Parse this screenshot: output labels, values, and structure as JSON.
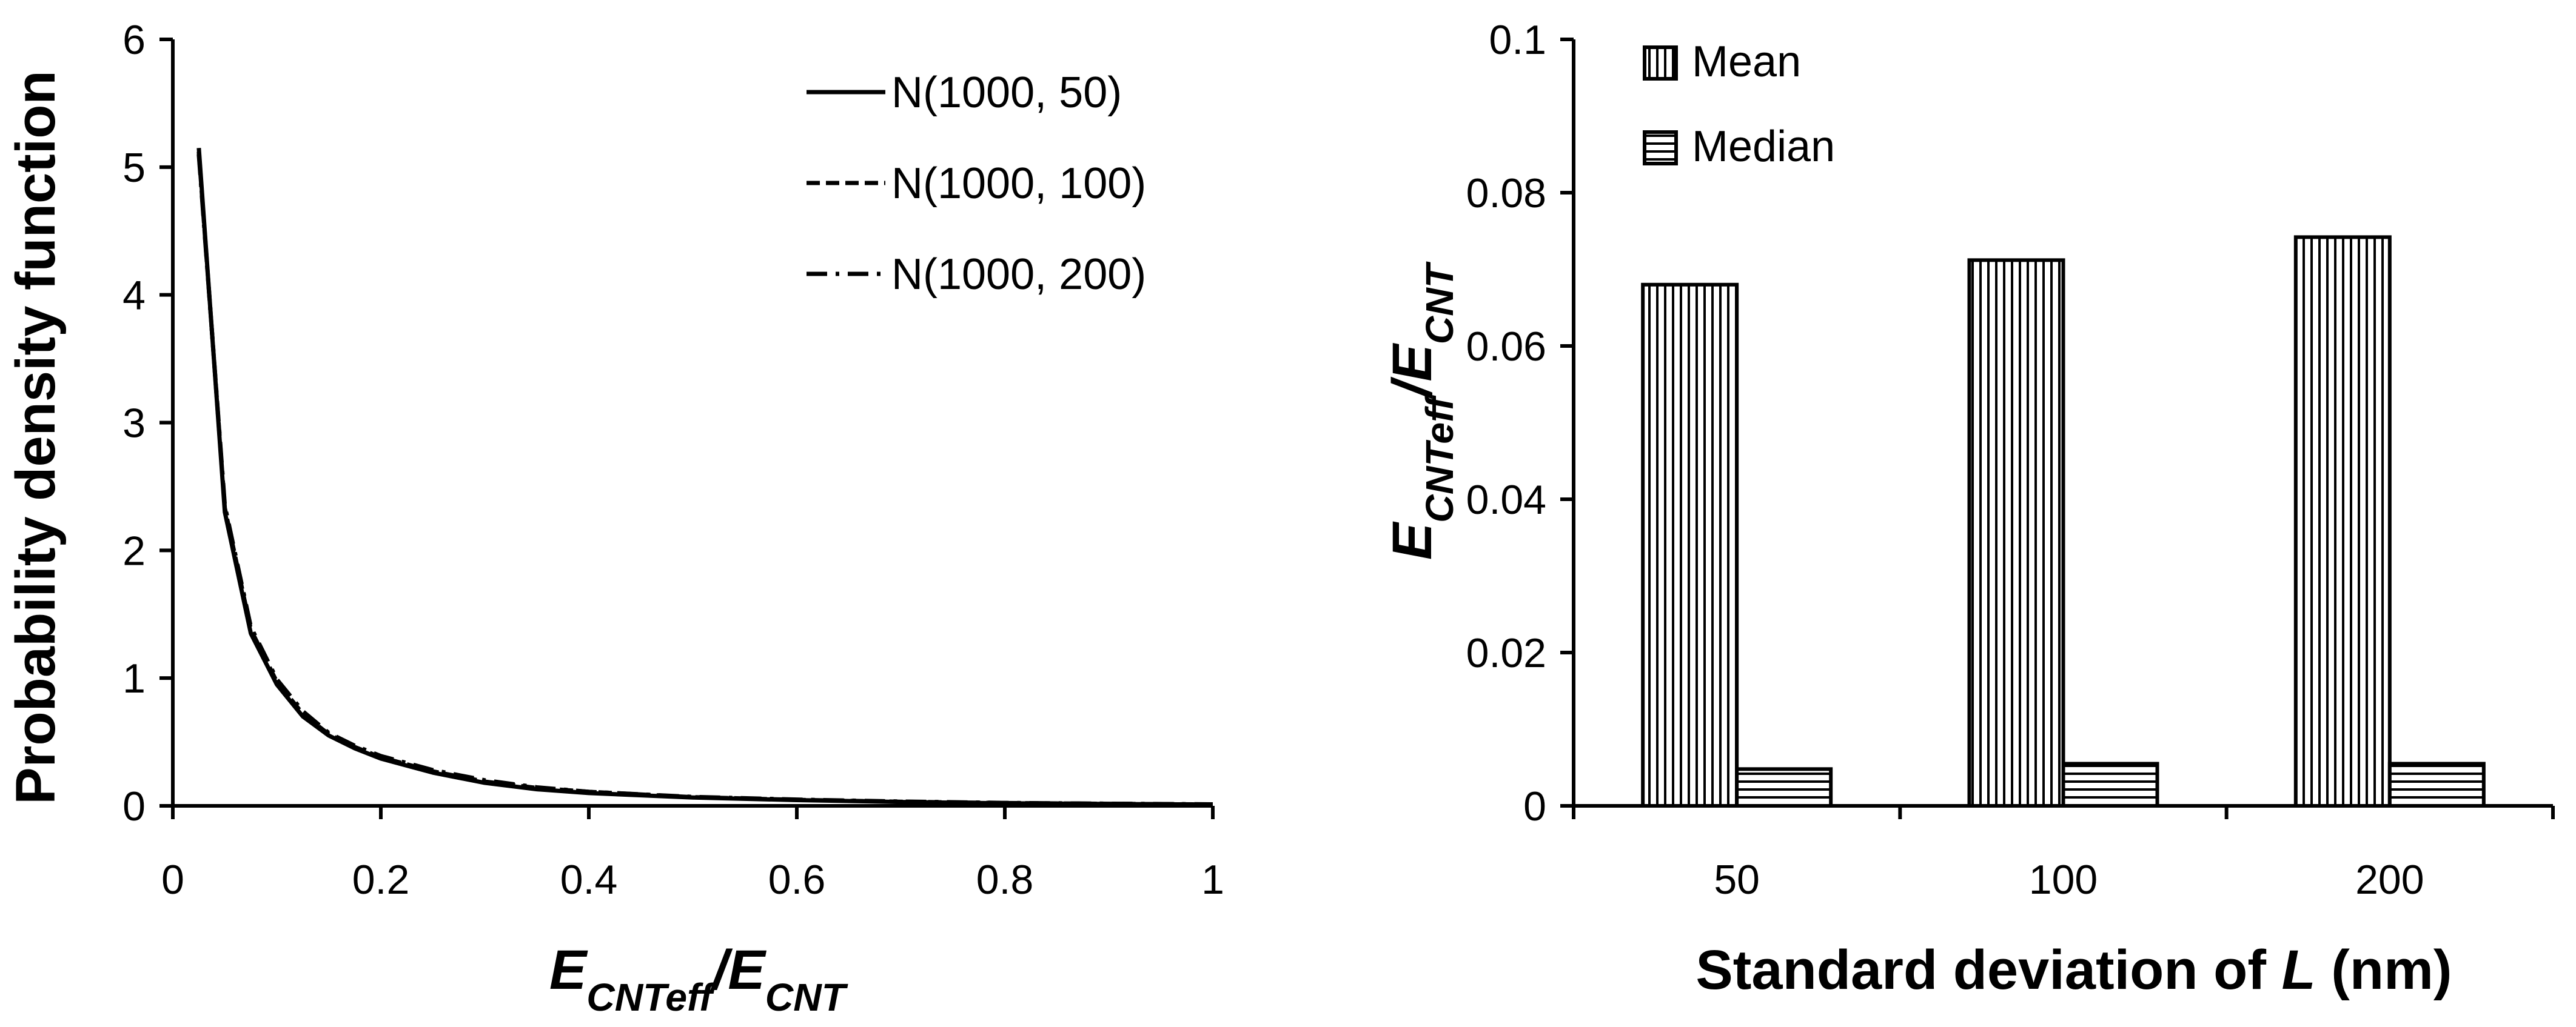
{
  "chart_data": [
    {
      "type": "line",
      "title": "",
      "xlabel": {
        "parts": [
          {
            "text": "E",
            "italic": true,
            "sub": false
          },
          {
            "text": "CNTeff",
            "italic": true,
            "sub": true
          },
          {
            "text": "/",
            "italic": true,
            "sub": false
          },
          {
            "text": "E",
            "italic": true,
            "sub": false
          },
          {
            "text": "CNT",
            "italic": true,
            "sub": true
          }
        ]
      },
      "ylabel": "Probability density function",
      "xlim": [
        0,
        1
      ],
      "ylim": [
        0,
        6
      ],
      "xticks": [
        "0",
        "0.2",
        "0.4",
        "0.6",
        "0.8",
        "1"
      ],
      "yticks": [
        "0",
        "1",
        "2",
        "3",
        "4",
        "5",
        "6"
      ],
      "x": [
        0.025,
        0.05,
        0.075,
        0.1,
        0.125,
        0.15,
        0.175,
        0.2,
        0.25,
        0.3,
        0.35,
        0.4,
        0.5,
        0.6,
        0.7,
        0.8,
        0.9,
        1.0
      ],
      "series": [
        {
          "name": "N(1000, 50)",
          "dash": "solid",
          "values": [
            5.15,
            2.3,
            1.35,
            0.95,
            0.7,
            0.55,
            0.45,
            0.37,
            0.26,
            0.18,
            0.13,
            0.1,
            0.065,
            0.045,
            0.03,
            0.02,
            0.015,
            0.01
          ]
        },
        {
          "name": "N(1000, 100)",
          "dash": "dashed",
          "values": [
            5.12,
            2.33,
            1.38,
            0.97,
            0.72,
            0.56,
            0.46,
            0.38,
            0.27,
            0.19,
            0.14,
            0.11,
            0.068,
            0.047,
            0.032,
            0.022,
            0.016,
            0.011
          ]
        },
        {
          "name": "N(1000, 200)",
          "dash": "dashdot",
          "values": [
            5.1,
            2.35,
            1.4,
            0.99,
            0.74,
            0.57,
            0.47,
            0.39,
            0.28,
            0.2,
            0.145,
            0.11,
            0.07,
            0.049,
            0.034,
            0.023,
            0.017,
            0.012
          ]
        }
      ],
      "legend_position": "top-right"
    },
    {
      "type": "bar",
      "title": "",
      "xlabel": {
        "parts": [
          {
            "text": "Standard deviation of ",
            "italic": false,
            "sub": false
          },
          {
            "text": "L",
            "italic": true,
            "sub": false
          },
          {
            "text": " (nm)",
            "italic": false,
            "sub": false
          }
        ]
      },
      "ylabel": {
        "parts": [
          {
            "text": "E",
            "italic": true,
            "sub": false
          },
          {
            "text": "CNTeff",
            "italic": true,
            "sub": true
          },
          {
            "text": "/",
            "italic": true,
            "sub": false
          },
          {
            "text": "E",
            "italic": true,
            "sub": false
          },
          {
            "text": "CNT",
            "italic": true,
            "sub": true
          }
        ]
      },
      "categories": [
        "50",
        "100",
        "200"
      ],
      "ylim": [
        0,
        0.1
      ],
      "yticks": [
        "0",
        "0.02",
        "0.04",
        "0.06",
        "0.08",
        "0.1"
      ],
      "series": [
        {
          "name": "Mean",
          "pattern": "vertical-lines",
          "values": [
            0.068,
            0.0712,
            0.0742
          ]
        },
        {
          "name": "Median",
          "pattern": "horizontal-lines",
          "values": [
            0.0048,
            0.0055,
            0.0055
          ]
        }
      ],
      "legend_position": "top-left"
    }
  ]
}
